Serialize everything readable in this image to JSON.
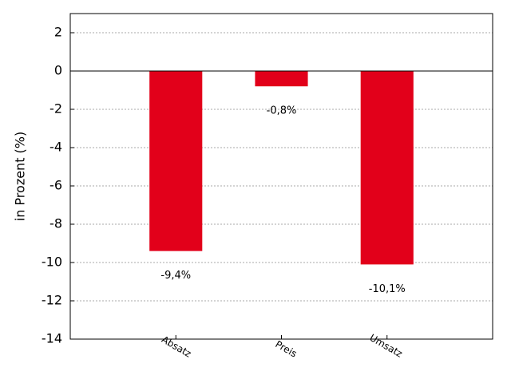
{
  "chart_data": {
    "type": "bar",
    "y_label": "in Prozent (%)",
    "categories": [
      "Absatz",
      "Preis",
      "Umsatz"
    ],
    "values": [
      -9.4,
      -0.8,
      -10.1
    ],
    "value_labels": [
      "-9,4%",
      "-0,8%",
      "-10,1%"
    ],
    "color": "#e2001a",
    "ylim": [
      -14,
      3
    ],
    "yticks": [
      -14,
      -12,
      -10,
      -8,
      -6,
      -4,
      -2,
      0,
      2
    ],
    "grid": true
  }
}
